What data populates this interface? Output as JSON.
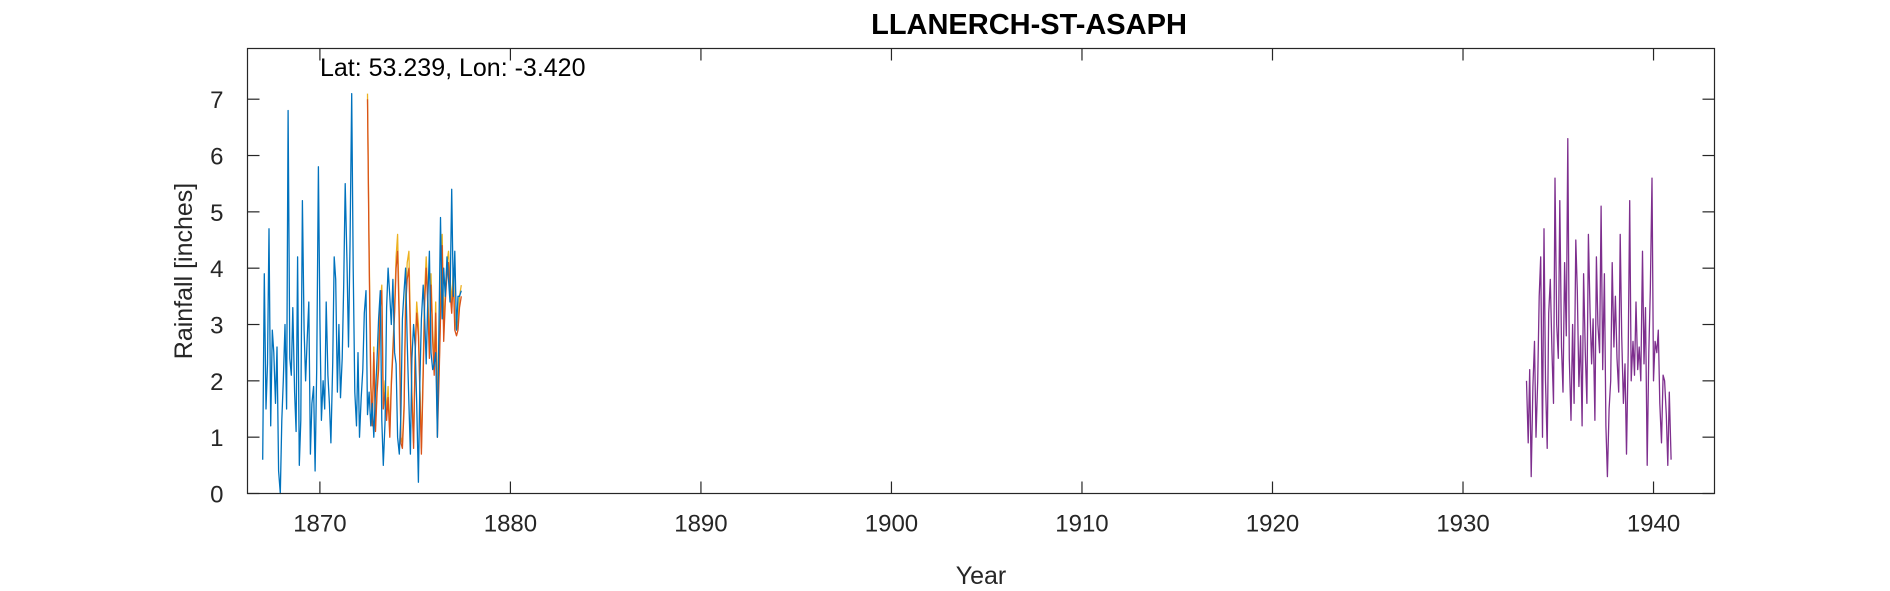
{
  "chart_data": {
    "type": "line",
    "title": "LLANERCH-ST-ASAPH",
    "annotation": "Lat: 53.239, Lon: -3.420",
    "xlabel": "Year",
    "ylabel": "Rainfall [inches]",
    "xlim": [
      1866.2,
      1943.2
    ],
    "ylim": [
      0,
      7.9
    ],
    "x_ticks": [
      1870,
      1880,
      1890,
      1900,
      1910,
      1920,
      1930,
      1940
    ],
    "y_ticks": [
      0,
      1,
      2,
      3,
      4,
      5,
      6,
      7
    ],
    "grid": false,
    "colors": {
      "series_blue": "#0072bd",
      "series_orange": "#d95319",
      "series_yellow": "#edb120",
      "series_purple": "#7e2f8e",
      "axis": "#262626"
    },
    "series": [
      {
        "color": "#edb120",
        "x": [
          1872.5,
          1872.58,
          1872.67,
          1872.75,
          1872.83,
          1872.92,
          1873.0,
          1873.08,
          1873.17,
          1873.25,
          1873.33,
          1873.42,
          1873.5,
          1873.58,
          1873.67,
          1873.75,
          1873.83,
          1873.92,
          1874.0,
          1874.08,
          1874.17,
          1874.25,
          1874.33,
          1874.42,
          1874.5,
          1874.58,
          1874.67,
          1874.75,
          1874.83,
          1874.92,
          1875.0,
          1875.08,
          1875.17,
          1875.25,
          1875.33,
          1875.42,
          1875.5,
          1875.58,
          1875.67,
          1875.75,
          1875.83,
          1875.92,
          1876.0,
          1876.08,
          1876.17,
          1876.25,
          1876.33,
          1876.42,
          1876.5,
          1876.58,
          1876.67,
          1876.75,
          1876.83,
          1876.92,
          1877.0,
          1877.08,
          1877.17,
          1877.25,
          1877.33,
          1877.42
        ],
        "y": [
          7.1,
          4.4,
          2.0,
          1.3,
          2.6,
          1.2,
          1.9,
          2.4,
          3.4,
          3.7,
          1.6,
          2.0,
          1.4,
          1.9,
          1.1,
          2.0,
          2.6,
          3.3,
          4.2,
          4.6,
          3.2,
          1.0,
          0.9,
          1.6,
          3.5,
          4.1,
          4.3,
          3.0,
          1.8,
          0.9,
          2.6,
          3.4,
          3.0,
          1.9,
          0.8,
          2.3,
          3.6,
          4.2,
          3.5,
          2.6,
          3.9,
          2.9,
          2.3,
          3.4,
          1.8,
          2.1,
          3.3,
          4.6,
          2.9,
          3.6,
          4.1,
          4.3,
          3.8,
          3.4,
          4.0,
          3.1,
          2.9,
          3.0,
          3.5,
          3.7
        ]
      },
      {
        "color": "#d95319",
        "x": [
          1872.5,
          1872.58,
          1872.67,
          1872.75,
          1872.83,
          1872.92,
          1873.0,
          1873.08,
          1873.17,
          1873.25,
          1873.33,
          1873.42,
          1873.5,
          1873.58,
          1873.67,
          1873.75,
          1873.83,
          1873.92,
          1874.0,
          1874.08,
          1874.17,
          1874.25,
          1874.33,
          1874.42,
          1874.5,
          1874.58,
          1874.67,
          1874.75,
          1874.83,
          1874.92,
          1875.0,
          1875.08,
          1875.17,
          1875.25,
          1875.33,
          1875.42,
          1875.5,
          1875.58,
          1875.67,
          1875.75,
          1875.83,
          1875.92,
          1876.0,
          1876.08,
          1876.17,
          1876.25,
          1876.33,
          1876.42,
          1876.5,
          1876.58,
          1876.67,
          1876.75,
          1876.83,
          1876.92,
          1877.0,
          1877.08,
          1877.17,
          1877.25,
          1877.33,
          1877.42
        ],
        "y": [
          7.0,
          4.2,
          1.9,
          1.2,
          2.5,
          1.1,
          1.8,
          2.2,
          3.3,
          3.6,
          1.5,
          1.8,
          1.3,
          1.7,
          1.0,
          1.9,
          2.5,
          3.2,
          4.0,
          4.3,
          3.0,
          0.9,
          0.8,
          1.5,
          3.3,
          3.8,
          4.0,
          2.8,
          1.7,
          0.8,
          2.5,
          3.2,
          2.8,
          1.8,
          0.7,
          2.1,
          3.4,
          4.0,
          3.3,
          2.4,
          3.7,
          2.7,
          2.1,
          3.2,
          1.0,
          2.0,
          3.1,
          4.4,
          2.7,
          3.4,
          3.9,
          4.1,
          3.6,
          3.2,
          3.8,
          2.9,
          2.8,
          2.9,
          3.3,
          3.5
        ]
      },
      {
        "color": "#0072bd",
        "x": [
          1867.0,
          1867.08,
          1867.17,
          1867.25,
          1867.33,
          1867.42,
          1867.5,
          1867.58,
          1867.67,
          1867.75,
          1867.83,
          1867.92,
          1868.0,
          1868.08,
          1868.17,
          1868.25,
          1868.33,
          1868.42,
          1868.5,
          1868.58,
          1868.67,
          1868.75,
          1868.83,
          1868.92,
          1869.0,
          1869.08,
          1869.17,
          1869.25,
          1869.33,
          1869.42,
          1869.5,
          1869.58,
          1869.67,
          1869.75,
          1869.83,
          1869.92,
          1870.0,
          1870.08,
          1870.17,
          1870.25,
          1870.33,
          1870.42,
          1870.5,
          1870.58,
          1870.67,
          1870.75,
          1870.83,
          1870.92,
          1871.0,
          1871.08,
          1871.17,
          1871.25,
          1871.33,
          1871.42,
          1871.5,
          1871.58,
          1871.67,
          1871.75,
          1871.83,
          1871.92,
          1872.0,
          1872.08,
          1872.17,
          1872.25,
          1872.33,
          1872.42,
          1872.5,
          1872.58,
          1872.67,
          1872.75,
          1872.83,
          1872.92,
          1873.0,
          1873.08,
          1873.17,
          1873.25,
          1873.33,
          1873.42,
          1873.5,
          1873.58,
          1873.67,
          1873.75,
          1873.83,
          1873.92,
          1874.0,
          1874.08,
          1874.17,
          1874.25,
          1874.33,
          1874.42,
          1874.5,
          1874.58,
          1874.67,
          1874.75,
          1874.83,
          1874.92,
          1875.0,
          1875.08,
          1875.17,
          1875.25,
          1875.33,
          1875.42,
          1875.5,
          1875.58,
          1875.67,
          1875.75,
          1875.83,
          1875.92,
          1876.0,
          1876.08,
          1876.17,
          1876.25,
          1876.33,
          1876.42,
          1876.5,
          1876.58,
          1876.67,
          1876.75,
          1876.83,
          1876.92,
          1877.0,
          1877.08,
          1877.17,
          1877.25,
          1877.33,
          1877.42
        ],
        "y": [
          0.6,
          3.9,
          1.5,
          2.3,
          4.7,
          1.2,
          2.9,
          2.5,
          1.6,
          2.6,
          0.4,
          0.0,
          1.3,
          2.0,
          3.0,
          1.5,
          6.8,
          2.4,
          2.1,
          3.3,
          1.8,
          1.1,
          4.2,
          0.5,
          1.3,
          5.2,
          2.9,
          2.0,
          2.7,
          3.4,
          0.7,
          1.6,
          1.9,
          0.4,
          2.2,
          5.8,
          3.1,
          1.3,
          2.0,
          1.5,
          3.4,
          2.1,
          1.6,
          0.9,
          2.3,
          4.2,
          3.8,
          1.8,
          3.0,
          1.7,
          2.4,
          3.7,
          5.5,
          4.1,
          2.6,
          4.4,
          7.1,
          4.0,
          1.8,
          1.2,
          2.5,
          1.0,
          1.7,
          2.2,
          3.2,
          3.6,
          1.4,
          1.8,
          1.2,
          1.6,
          1.0,
          1.8,
          2.4,
          3.1,
          3.6,
          1.3,
          0.5,
          1.3,
          3.3,
          4.0,
          3.5,
          3.0,
          3.8,
          2.5,
          2.3,
          1.0,
          0.7,
          1.4,
          3.1,
          3.6,
          4.0,
          2.7,
          1.6,
          0.7,
          2.4,
          3.0,
          2.6,
          1.6,
          0.2,
          2.0,
          3.1,
          3.7,
          3.1,
          2.3,
          3.5,
          4.3,
          2.5,
          2.2,
          2.3,
          2.5,
          1.0,
          3.0,
          4.9,
          3.1,
          4.0,
          3.5,
          4.2,
          3.8,
          3.4,
          5.4,
          3.5,
          4.3,
          2.9,
          3.5,
          3.5,
          3.6
        ]
      },
      {
        "color": "#7e2f8e",
        "x": [
          1933.33,
          1933.42,
          1933.5,
          1933.58,
          1933.67,
          1933.75,
          1933.83,
          1933.92,
          1934.0,
          1934.08,
          1934.17,
          1934.25,
          1934.33,
          1934.42,
          1934.5,
          1934.58,
          1934.67,
          1934.75,
          1934.83,
          1934.92,
          1935.0,
          1935.08,
          1935.17,
          1935.25,
          1935.33,
          1935.42,
          1935.5,
          1935.58,
          1935.67,
          1935.75,
          1935.83,
          1935.92,
          1936.0,
          1936.08,
          1936.17,
          1936.25,
          1936.33,
          1936.42,
          1936.5,
          1936.58,
          1936.67,
          1936.75,
          1936.83,
          1936.92,
          1937.0,
          1937.08,
          1937.17,
          1937.25,
          1937.33,
          1937.42,
          1937.5,
          1937.58,
          1937.67,
          1937.75,
          1937.83,
          1937.92,
          1938.0,
          1938.08,
          1938.17,
          1938.25,
          1938.33,
          1938.42,
          1938.5,
          1938.58,
          1938.67,
          1938.75,
          1938.83,
          1938.92,
          1939.0,
          1939.08,
          1939.17,
          1939.25,
          1939.33,
          1939.42,
          1939.5,
          1939.58,
          1939.67,
          1939.75,
          1939.83,
          1939.92,
          1940.0,
          1940.08,
          1940.17,
          1940.25,
          1940.33,
          1940.42,
          1940.5,
          1940.58,
          1940.67,
          1940.75,
          1940.83,
          1940.92
        ],
        "y": [
          2.0,
          0.9,
          2.2,
          0.3,
          1.9,
          2.7,
          1.0,
          2.0,
          3.5,
          4.2,
          1.0,
          4.7,
          2.0,
          0.8,
          3.2,
          3.8,
          2.5,
          1.6,
          5.6,
          3.0,
          2.4,
          5.2,
          2.6,
          1.8,
          4.1,
          2.8,
          6.3,
          2.4,
          1.3,
          3.0,
          1.6,
          4.5,
          3.6,
          1.9,
          2.8,
          1.2,
          3.9,
          2.5,
          1.6,
          4.6,
          3.2,
          2.3,
          3.1,
          1.3,
          4.2,
          3.0,
          2.5,
          5.1,
          2.2,
          3.9,
          1.2,
          0.3,
          1.5,
          2.0,
          4.1,
          2.6,
          3.5,
          2.4,
          1.8,
          4.6,
          2.8,
          1.6,
          2.3,
          0.7,
          2.5,
          5.2,
          2.0,
          2.7,
          2.1,
          3.4,
          2.2,
          2.6,
          2.0,
          4.3,
          2.3,
          3.3,
          0.5,
          2.5,
          3.6,
          5.6,
          2.0,
          2.7,
          2.5,
          2.9,
          1.6,
          0.9,
          2.1,
          2.0,
          1.4,
          0.5,
          1.8,
          0.6
        ]
      }
    ]
  }
}
